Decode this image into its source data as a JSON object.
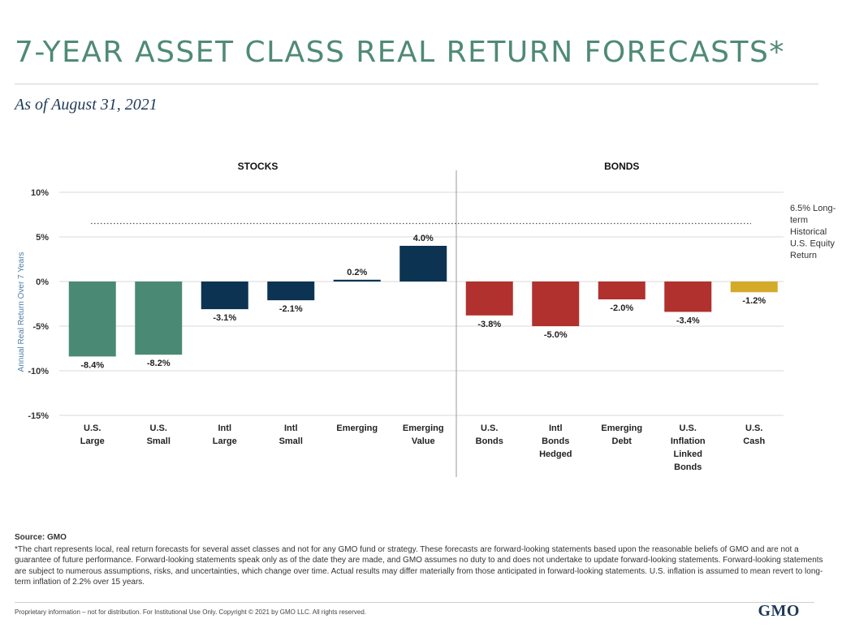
{
  "page": {
    "title": "7-YEAR ASSET CLASS REAL RETURN FORECASTS*",
    "subtitle": "As of August 31, 2021"
  },
  "chart_data": {
    "type": "bar",
    "ylabel": "Annual Real Return Over 7 Years",
    "ylim": [
      -15,
      10
    ],
    "yticks": [
      {
        "value": 10,
        "label": "10%"
      },
      {
        "value": 5,
        "label": "5%"
      },
      {
        "value": 0,
        "label": "0%"
      },
      {
        "value": -5,
        "label": "-5%"
      },
      {
        "value": -10,
        "label": "-10%"
      },
      {
        "value": -15,
        "label": "-15%"
      }
    ],
    "grid": true,
    "groups": [
      {
        "name": "STOCKS",
        "count": 6
      },
      {
        "name": "BONDS",
        "count": 5
      }
    ],
    "categories": [
      [
        "U.S.",
        "Large"
      ],
      [
        "U.S.",
        "Small"
      ],
      [
        "Intl",
        "Large"
      ],
      [
        "Intl",
        "Small"
      ],
      [
        "Emerging"
      ],
      [
        "Emerging",
        "Value"
      ],
      [
        "U.S.",
        "Bonds"
      ],
      [
        "Intl",
        "Bonds",
        "Hedged"
      ],
      [
        "Emerging",
        "Debt"
      ],
      [
        "U.S.",
        "Inflation",
        "Linked",
        "Bonds"
      ],
      [
        "U.S.",
        "Cash"
      ]
    ],
    "values": [
      -8.4,
      -8.2,
      -3.1,
      -2.1,
      0.2,
      4.0,
      -3.8,
      -5.0,
      -2.0,
      -3.4,
      -1.2
    ],
    "value_labels": [
      "-8.4%",
      "-8.2%",
      "-3.1%",
      "-2.1%",
      "0.2%",
      "4.0%",
      "-3.8%",
      "-5.0%",
      "-2.0%",
      "-3.4%",
      "-1.2%"
    ],
    "colors": [
      "#4a8a74",
      "#4a8a74",
      "#0d3352",
      "#0d3352",
      "#0d3352",
      "#0d3352",
      "#b0312d",
      "#b0312d",
      "#b0312d",
      "#b0312d",
      "#d3aa2a"
    ],
    "reference_line": {
      "value": 6.5,
      "label_lines": [
        "6.5% Long-",
        "term",
        "Historical",
        "U.S. Equity",
        "Return"
      ]
    }
  },
  "notes": {
    "source": "Source: GMO",
    "footnote": "*The chart represents local, real return forecasts for several asset classes and not for any GMO fund or strategy. These forecasts are forward-looking statements based upon the reasonable beliefs of GMO and are not a guarantee of future performance. Forward-looking statements speak only as of the date they are made, and GMO assumes no duty to and does not undertake to update forward-looking statements. Forward-looking statements are subject to numerous assumptions, risks, and uncertainties, which change over time. Actual results may differ materially from those anticipated in forward-looking statements. U.S. inflation is assumed to mean revert to long-term inflation of 2.2% over 15 years."
  },
  "footer": {
    "disclaimer": "Proprietary information – not for distribution. For Institutional Use Only. Copyright © 2021 by GMO LLC. All rights reserved.",
    "brand": "GMO"
  }
}
